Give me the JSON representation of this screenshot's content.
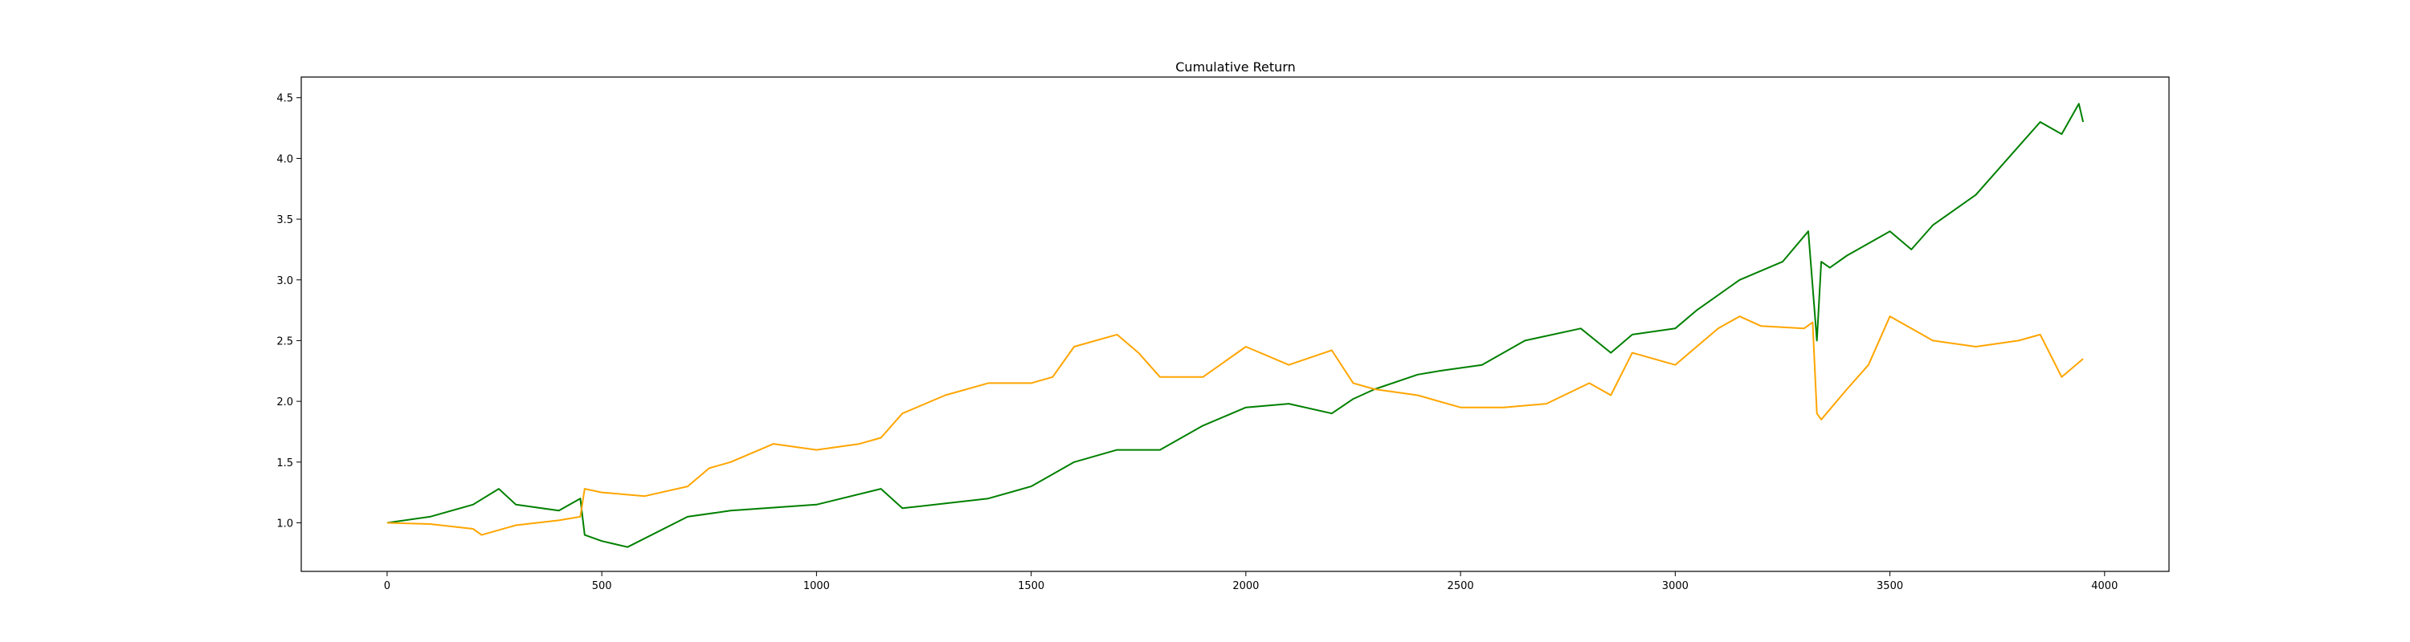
{
  "chart_data": {
    "type": "line",
    "title": "Cumulative Return",
    "xlabel": "",
    "ylabel": "",
    "xlim": [
      -200,
      4150
    ],
    "ylim": [
      0.6,
      4.67
    ],
    "xticks": [
      0,
      500,
      1000,
      1500,
      2000,
      2500,
      3000,
      3500,
      4000
    ],
    "yticks": [
      1.0,
      1.5,
      2.0,
      2.5,
      3.0,
      3.5,
      4.0,
      4.5
    ],
    "grid": false,
    "legend": "none",
    "series": [
      {
        "color": "#008000",
        "x": [
          0,
          100,
          200,
          260,
          300,
          400,
          450,
          460,
          500,
          560,
          700,
          800,
          1000,
          1150,
          1200,
          1400,
          1500,
          1600,
          1700,
          1800,
          1900,
          2000,
          2100,
          2200,
          2250,
          2300,
          2400,
          2450,
          2550,
          2650,
          2780,
          2850,
          2900,
          3000,
          3050,
          3150,
          3250,
          3310,
          3330,
          3340,
          3360,
          3400,
          3500,
          3550,
          3600,
          3700,
          3800,
          3850,
          3900,
          3940,
          3950
        ],
        "y": [
          1.0,
          1.05,
          1.15,
          1.28,
          1.15,
          1.1,
          1.2,
          0.9,
          0.85,
          0.8,
          1.05,
          1.1,
          1.15,
          1.28,
          1.12,
          1.2,
          1.3,
          1.5,
          1.6,
          1.6,
          1.8,
          1.95,
          1.98,
          1.9,
          2.02,
          2.1,
          2.22,
          2.25,
          2.3,
          2.5,
          2.6,
          2.4,
          2.55,
          2.6,
          2.75,
          3.0,
          3.15,
          3.4,
          2.5,
          3.15,
          3.1,
          3.2,
          3.4,
          3.25,
          3.45,
          3.7,
          4.1,
          4.3,
          4.2,
          4.45,
          4.3
        ]
      },
      {
        "color": "#ffa500",
        "x": [
          0,
          100,
          200,
          220,
          300,
          400,
          450,
          460,
          500,
          600,
          700,
          750,
          800,
          900,
          1000,
          1100,
          1150,
          1200,
          1300,
          1400,
          1500,
          1550,
          1600,
          1700,
          1750,
          1800,
          1900,
          2000,
          2100,
          2200,
          2250,
          2300,
          2400,
          2500,
          2600,
          2700,
          2800,
          2850,
          2900,
          3000,
          3100,
          3150,
          3200,
          3300,
          3320,
          3330,
          3340,
          3400,
          3450,
          3500,
          3550,
          3600,
          3700,
          3800,
          3850,
          3900,
          3950
        ],
        "y": [
          1.0,
          0.99,
          0.95,
          0.9,
          0.98,
          1.02,
          1.05,
          1.28,
          1.25,
          1.22,
          1.3,
          1.45,
          1.5,
          1.65,
          1.6,
          1.65,
          1.7,
          1.9,
          2.05,
          2.15,
          2.15,
          2.2,
          2.45,
          2.55,
          2.4,
          2.2,
          2.2,
          2.45,
          2.3,
          2.42,
          2.15,
          2.1,
          2.05,
          1.95,
          1.95,
          1.98,
          2.15,
          2.05,
          2.4,
          2.3,
          2.6,
          2.7,
          2.62,
          2.6,
          2.65,
          1.9,
          1.85,
          2.1,
          2.3,
          2.7,
          2.6,
          2.5,
          2.45,
          2.5,
          2.55,
          2.2,
          2.35
        ]
      }
    ]
  }
}
